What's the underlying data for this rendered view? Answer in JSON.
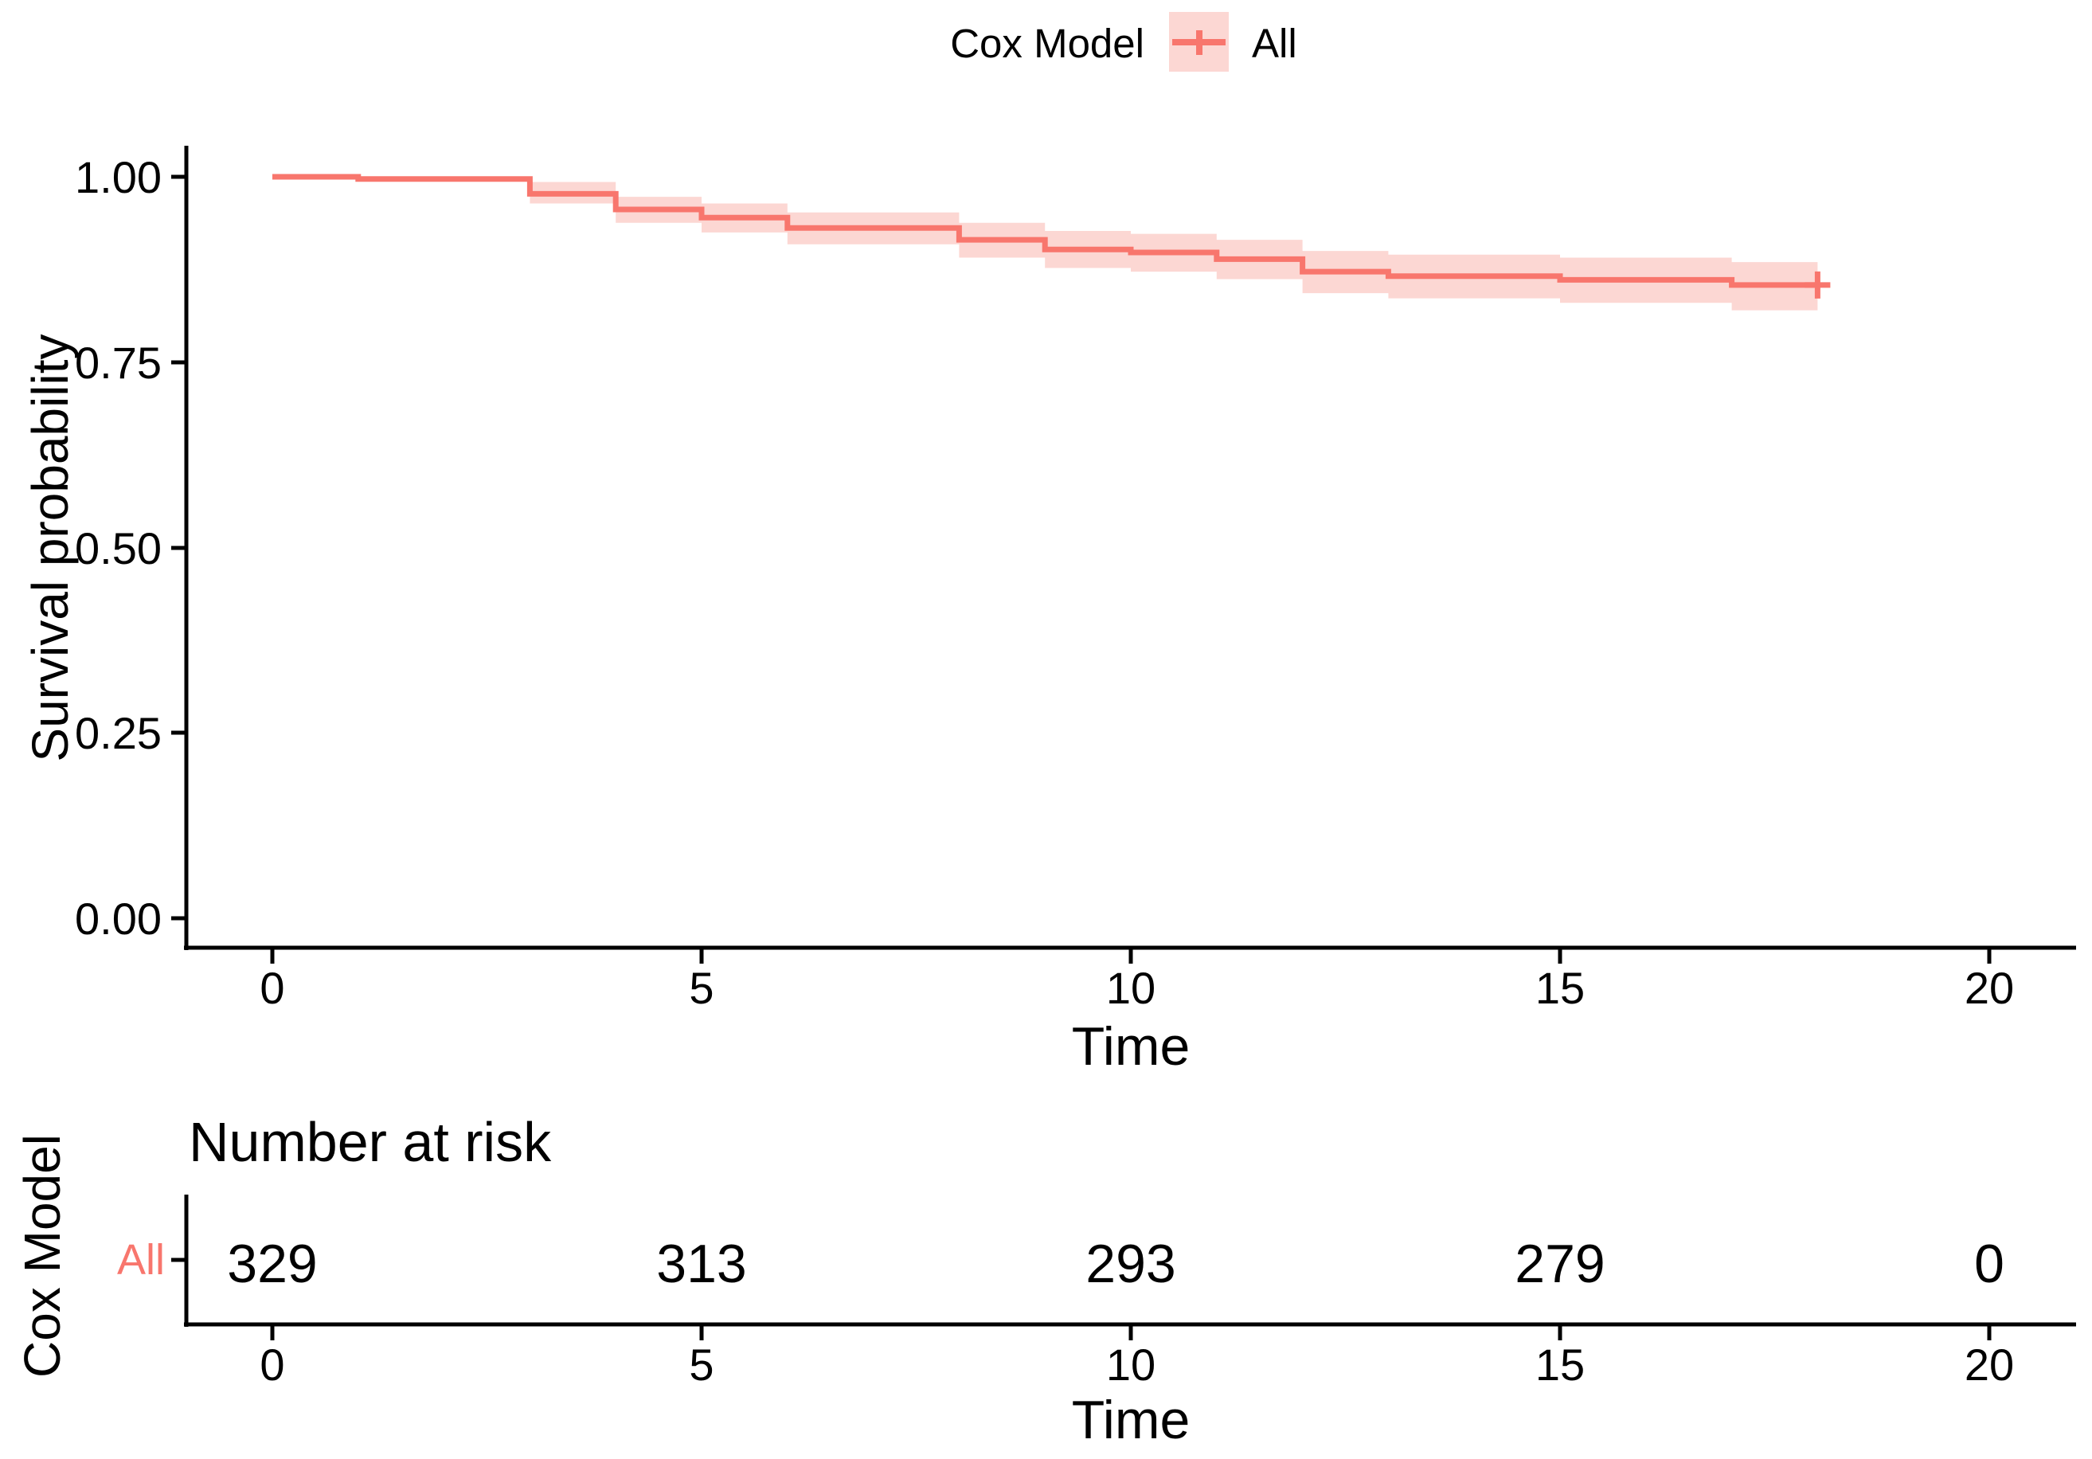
{
  "colors": {
    "line": "#F8766D",
    "ribbon": "#FCD7D3",
    "text": "#000000"
  },
  "legend": {
    "title": "Cox Model",
    "items": [
      {
        "label": "All"
      }
    ]
  },
  "main_plot": {
    "ylabel": "Survival probability",
    "xlabel": "Time",
    "yticks": [
      "1.00",
      "0.75",
      "0.50",
      "0.25",
      "0.00"
    ],
    "xticks": [
      "0",
      "5",
      "10",
      "15",
      "20"
    ]
  },
  "risk_table": {
    "title": "Number at risk",
    "ylabel": "Cox Model",
    "row_label": "All",
    "values": [
      "329",
      "313",
      "293",
      "279",
      "0"
    ],
    "xticks": [
      "0",
      "5",
      "10",
      "15",
      "20"
    ],
    "xlabel": "Time"
  },
  "chart_data": {
    "type": "line",
    "subtype": "kaplan-meier-step-curve-with-ci",
    "title": "",
    "xlabel": "Time",
    "ylabel": "Survival probability",
    "xlim": [
      0,
      20
    ],
    "ylim": [
      0,
      1
    ],
    "x_ticks": [
      0,
      5,
      10,
      15,
      20
    ],
    "y_ticks": [
      1.0,
      0.75,
      0.5,
      0.25,
      0.0
    ],
    "grid": false,
    "legend_position": "top",
    "series": [
      {
        "name": "All",
        "step_points": [
          [
            0,
            1.0
          ],
          [
            1,
            0.997
          ],
          [
            3,
            0.977
          ],
          [
            4,
            0.956
          ],
          [
            5,
            0.945
          ],
          [
            6,
            0.931
          ],
          [
            8,
            0.915
          ],
          [
            9,
            0.902
          ],
          [
            10,
            0.898
          ],
          [
            11,
            0.889
          ],
          [
            12,
            0.872
          ],
          [
            13,
            0.866
          ],
          [
            15,
            0.861
          ],
          [
            17,
            0.854
          ],
          [
            18,
            0.854
          ]
        ],
        "ci_steps": [
          [
            3,
            0.964,
            0.993
          ],
          [
            4,
            0.938,
            0.973
          ],
          [
            5,
            0.925,
            0.964
          ],
          [
            6,
            0.909,
            0.952
          ],
          [
            8,
            0.891,
            0.938
          ],
          [
            9,
            0.877,
            0.927
          ],
          [
            10,
            0.872,
            0.923
          ],
          [
            11,
            0.862,
            0.915
          ],
          [
            12,
            0.843,
            0.9
          ],
          [
            13,
            0.836,
            0.895
          ],
          [
            15,
            0.83,
            0.891
          ],
          [
            17,
            0.82,
            0.885
          ],
          [
            18,
            0.82,
            0.885
          ]
        ],
        "censor_marks": [
          [
            18,
            0.854
          ]
        ]
      }
    ],
    "number_at_risk": {
      "group": "All",
      "times": [
        0,
        5,
        10,
        15,
        20
      ],
      "counts": [
        329,
        313,
        293,
        279,
        0
      ]
    }
  }
}
